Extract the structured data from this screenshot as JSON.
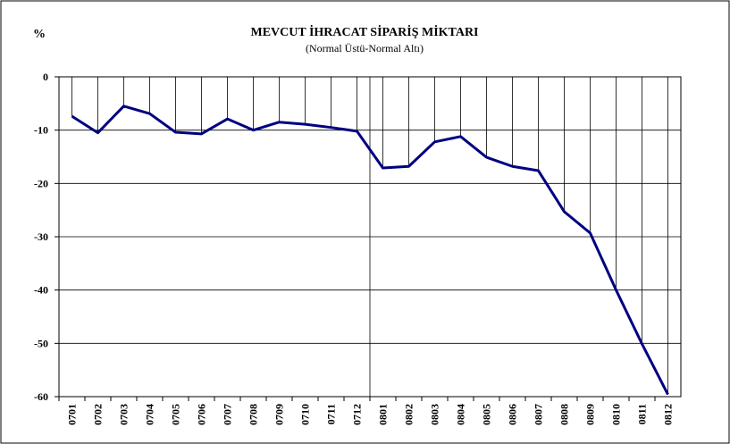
{
  "chart_data": {
    "type": "line",
    "title": "MEVCUT İHRACAT SİPARİŞ MİKTARI",
    "subtitle": "(Normal Üstü-Normal Altı)",
    "y_label": "%",
    "categories": [
      "0701",
      "0702",
      "0703",
      "0704",
      "0705",
      "0706",
      "0707",
      "0708",
      "0709",
      "0710",
      "0711",
      "0712",
      "0801",
      "0802",
      "0803",
      "0804",
      "0805",
      "0806",
      "0807",
      "0808",
      "0809",
      "0810",
      "0811",
      "0812"
    ],
    "series": [
      {
        "name": "MEVCUT İHRACAT SİPARİŞ MİKTARI",
        "color": "#000080",
        "values": [
          -7.4,
          -10.5,
          -5.5,
          -6.9,
          -10.4,
          -10.7,
          -7.9,
          -10.0,
          -8.5,
          -8.9,
          -9.5,
          -10.2,
          -17.1,
          -16.8,
          -12.2,
          -11.2,
          -15.1,
          -16.8,
          -17.6,
          -25.3,
          -29.3,
          -40.0,
          -50.1,
          -59.6
        ]
      }
    ],
    "ylim": [
      -60,
      0
    ],
    "yticks": [
      0,
      -10,
      -20,
      -30,
      -40,
      -50,
      -60
    ],
    "grid": true,
    "drop_lines": true
  }
}
